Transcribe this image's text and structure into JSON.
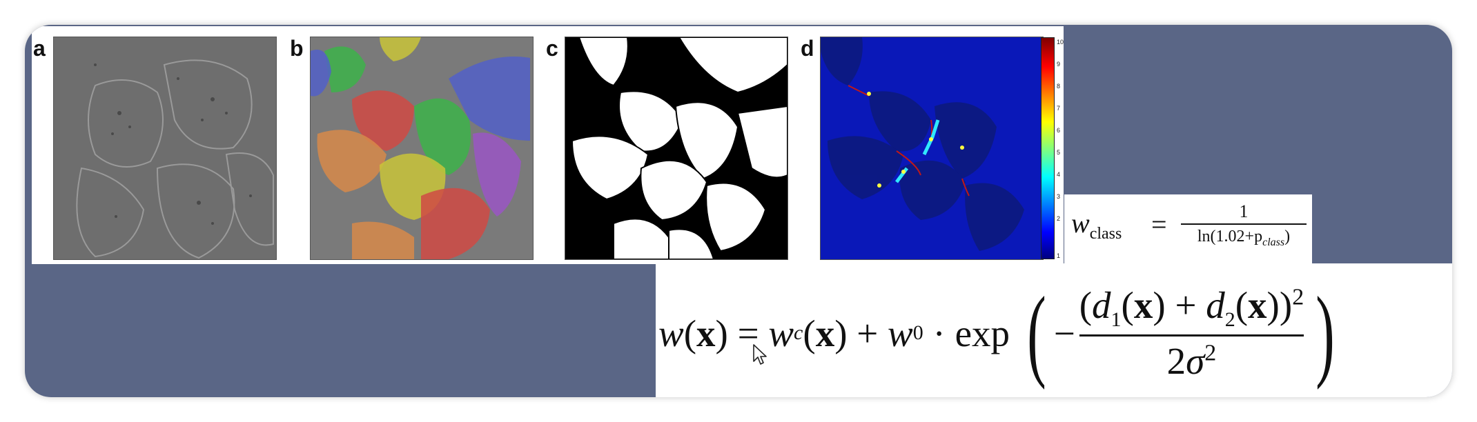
{
  "panels": [
    {
      "id": "a",
      "label": "a"
    },
    {
      "id": "b",
      "label": "b"
    },
    {
      "id": "c",
      "label": "c"
    },
    {
      "id": "d",
      "label": "d"
    }
  ],
  "colorbar": {
    "ticks": [
      "10",
      "9",
      "8",
      "7",
      "6",
      "5",
      "4",
      "3",
      "2",
      "1"
    ],
    "colors": [
      "#00007f",
      "#0000ff",
      "#00ffff",
      "#ffff00",
      "#ff0000",
      "#7f0000"
    ]
  },
  "formula_wclass": {
    "lhs_var": "w",
    "lhs_sub": "class",
    "equals": "=",
    "numerator": "1",
    "denominator": "ln(1.02+p",
    "denominator_sub": "class",
    "denominator_close": ")"
  },
  "formula_weight": {
    "w": "w",
    "x": "x",
    "wc": "w",
    "wc_sub": "c",
    "w0": "w",
    "w0_sub": "0",
    "dot": "·",
    "exp": "exp",
    "minus": "−",
    "d1": "d",
    "d1_sub": "1",
    "d2": "d",
    "d2_sub": "2",
    "sq": "2",
    "den_coef": "2",
    "sigma": "σ"
  },
  "colors": {
    "background": "#5a6686",
    "heatmap_base": "#0a18b8",
    "cell_red": "#d04a44",
    "cell_green": "#3db34a",
    "cell_blue": "#5260c8",
    "cell_yellow": "#c9c43a",
    "cell_orange": "#d78a4a",
    "cell_purple": "#9a56c4"
  },
  "icons": {
    "cursor": "mouse-pointer-icon"
  }
}
